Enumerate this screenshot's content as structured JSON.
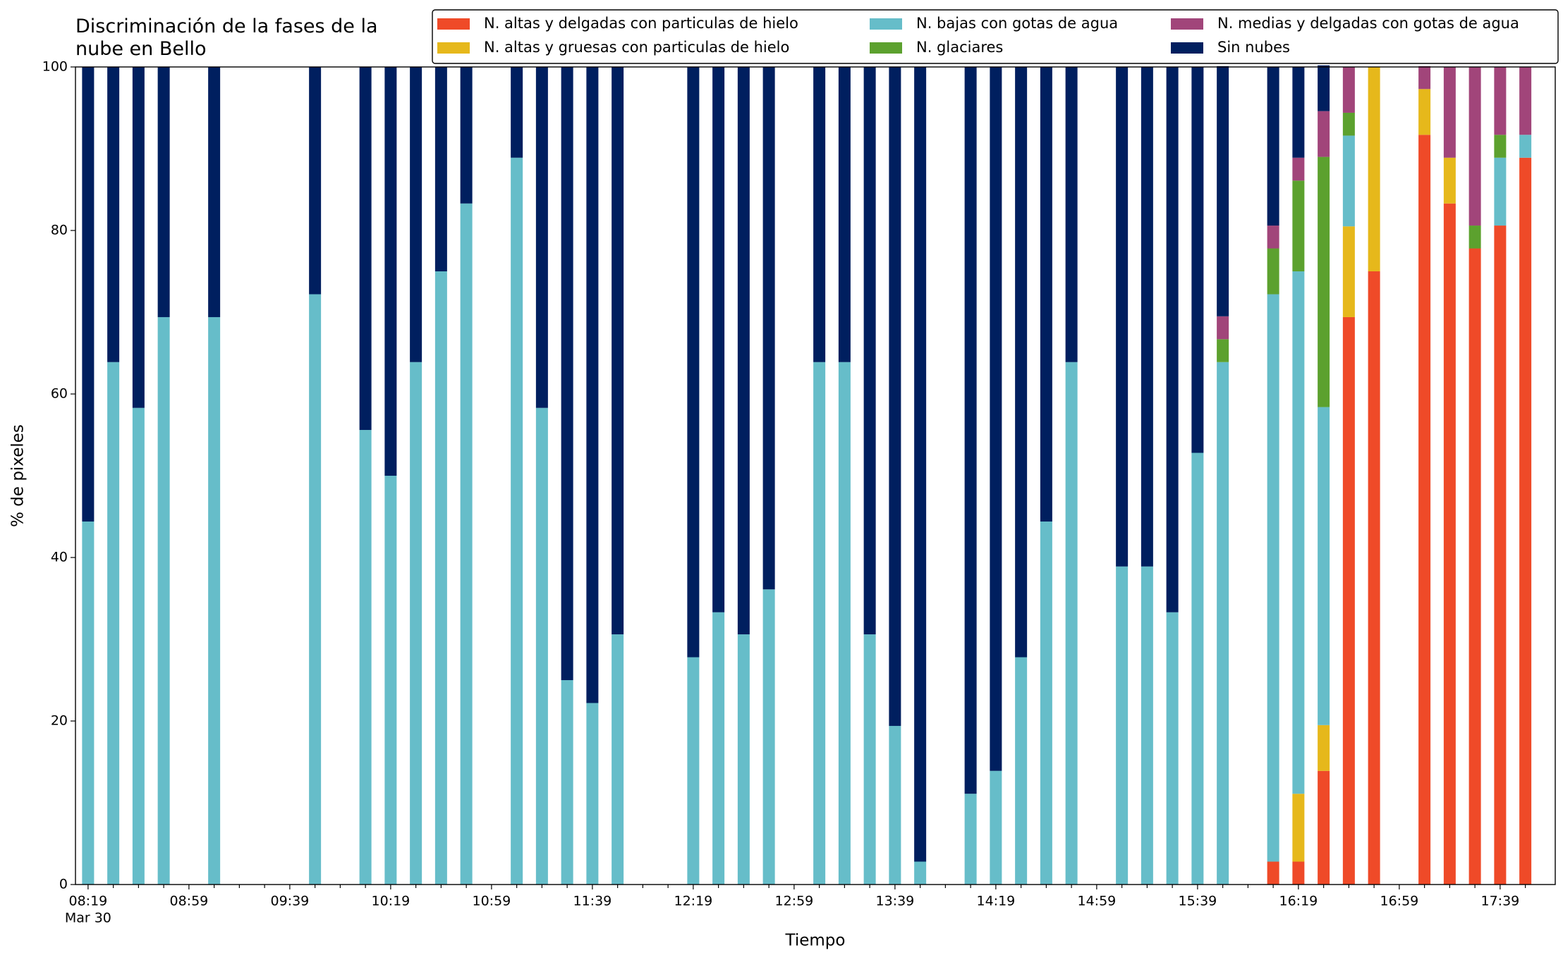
{
  "chart_data": {
    "type": "stacked_bar",
    "title": "Discriminación de la fases de la\nnube en Bello",
    "x_label": "Tiempo",
    "y_label": "% de pixeles",
    "date_label": "Mar 30",
    "categories": [
      "08:19",
      null,
      null,
      null,
      "08:59",
      null,
      null,
      null,
      "09:39",
      null,
      null,
      null,
      "10:19",
      null,
      null,
      null,
      "10:59",
      null,
      null,
      null,
      "11:39",
      null,
      null,
      null,
      "12:19",
      null,
      null,
      null,
      "12:59",
      null,
      null,
      null,
      "13:39",
      null,
      null,
      null,
      "14:19",
      null,
      null,
      null,
      "14:59",
      null,
      null,
      null,
      "15:39",
      null,
      null,
      null,
      "16:19",
      null,
      null,
      null,
      "16:59",
      null,
      null,
      null,
      "17:39",
      null
    ],
    "ylim": [
      0,
      100
    ],
    "yticks": [
      0,
      20,
      40,
      60,
      80,
      100
    ],
    "grid": false,
    "legend": "top-right",
    "series": [
      {
        "name": "N. altas y delgadas con particulas de hielo",
        "color": "#ef4a28",
        "values": [
          0,
          0,
          0,
          0,
          null,
          0,
          null,
          null,
          null,
          0,
          null,
          0,
          0,
          0,
          0,
          0,
          null,
          0,
          0,
          0,
          0,
          0,
          null,
          null,
          0,
          0,
          0,
          0,
          null,
          0,
          0,
          0,
          0,
          0,
          null,
          0,
          0,
          0,
          0,
          0,
          null,
          0,
          0,
          0,
          0,
          0,
          null,
          2.8,
          2.8,
          13.9,
          69.4,
          75,
          null,
          91.7,
          83.3,
          77.8,
          80.6,
          88.9
        ]
      },
      {
        "name": "N. altas y gruesas con particulas de hielo",
        "color": "#e6b81b",
        "values": [
          0,
          0,
          0,
          0,
          null,
          0,
          null,
          null,
          null,
          0,
          null,
          0,
          0,
          0,
          0,
          0,
          null,
          0,
          0,
          0,
          0,
          0,
          null,
          null,
          0,
          0,
          0,
          0,
          null,
          0,
          0,
          0,
          0,
          0,
          null,
          0,
          0,
          0,
          0,
          0,
          null,
          0,
          0,
          0,
          0,
          0,
          null,
          0,
          8.3,
          5.6,
          11.1,
          25,
          null,
          5.6,
          5.6,
          0,
          0,
          0
        ]
      },
      {
        "name": "N. bajas con gotas de agua",
        "color": "#66bdc9",
        "values": [
          44.4,
          63.9,
          58.3,
          69.4,
          null,
          69.4,
          null,
          null,
          null,
          72.2,
          null,
          55.6,
          50,
          63.9,
          75,
          83.3,
          null,
          88.9,
          58.3,
          25,
          22.2,
          30.6,
          null,
          null,
          27.8,
          33.3,
          30.6,
          36.1,
          null,
          63.9,
          63.9,
          30.6,
          19.4,
          2.8,
          null,
          11.1,
          13.9,
          27.8,
          44.4,
          63.9,
          null,
          38.9,
          38.9,
          33.3,
          52.8,
          63.9,
          null,
          69.4,
          63.9,
          38.9,
          11.1,
          0,
          null,
          0,
          0,
          0,
          8.3,
          2.8
        ]
      },
      {
        "name": "N. glaciares",
        "color": "#5ca12e",
        "values": [
          0,
          0,
          0,
          0,
          null,
          0,
          null,
          null,
          null,
          0,
          null,
          0,
          0,
          0,
          0,
          0,
          null,
          0,
          0,
          0,
          0,
          0,
          null,
          null,
          0,
          0,
          0,
          0,
          null,
          0,
          0,
          0,
          0,
          0,
          null,
          0,
          0,
          0,
          0,
          0,
          null,
          0,
          0,
          0,
          0,
          2.8,
          null,
          5.6,
          11.1,
          30.6,
          2.8,
          0,
          null,
          0,
          0,
          2.8,
          2.8,
          0
        ]
      },
      {
        "name": "N. medias y delgadas con gotas de agua",
        "color": "#a1457a",
        "values": [
          0,
          0,
          0,
          0,
          null,
          0,
          null,
          null,
          null,
          0,
          null,
          0,
          0,
          0,
          0,
          0,
          null,
          0,
          0,
          0,
          0,
          0,
          null,
          null,
          0,
          0,
          0,
          0,
          null,
          0,
          0,
          0,
          0,
          0,
          null,
          0,
          0,
          0,
          0,
          0,
          null,
          0,
          0,
          0,
          0,
          2.8,
          null,
          2.8,
          2.8,
          5.6,
          5.6,
          0,
          null,
          2.8,
          11.1,
          19.4,
          8.3,
          8.3
        ]
      },
      {
        "name": "Sin nubes",
        "color": "#001f5f",
        "values": [
          55.6,
          36.1,
          41.7,
          30.6,
          null,
          30.6,
          null,
          null,
          null,
          27.8,
          null,
          44.4,
          50,
          36.1,
          25,
          16.7,
          null,
          11.1,
          41.7,
          75,
          77.8,
          69.4,
          null,
          null,
          72.2,
          66.7,
          69.4,
          63.9,
          null,
          36.1,
          36.1,
          69.4,
          80.6,
          97.2,
          null,
          88.9,
          86.1,
          72.2,
          55.6,
          36.1,
          null,
          61.1,
          61.1,
          66.7,
          47.2,
          30.6,
          null,
          19.4,
          11.1,
          5.6,
          0,
          0,
          null,
          0,
          0,
          0,
          0,
          0
        ]
      }
    ]
  }
}
